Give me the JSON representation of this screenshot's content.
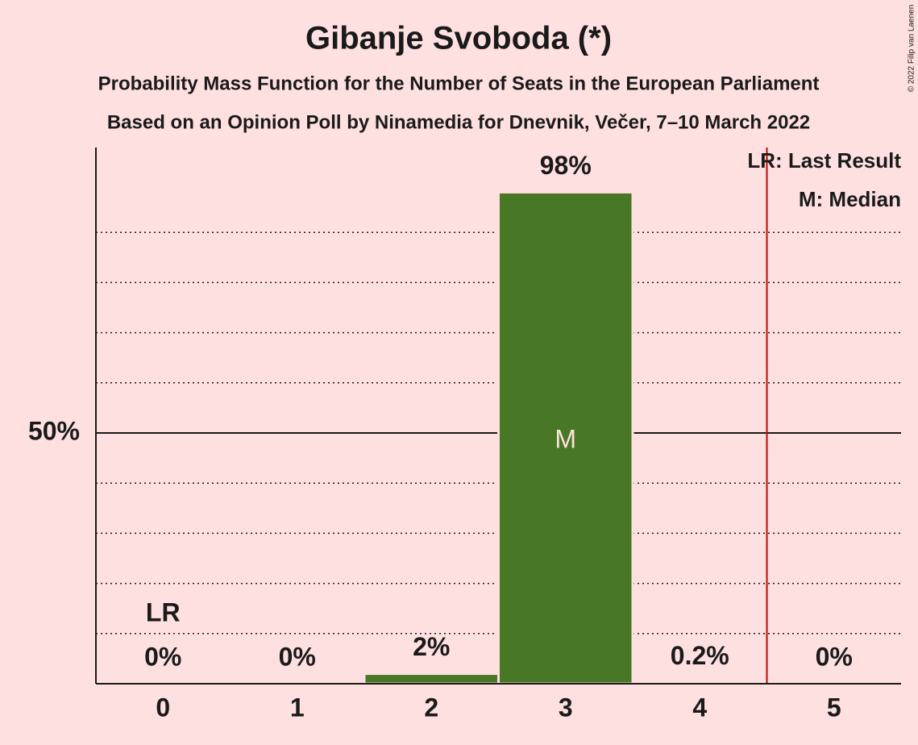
{
  "chart_data": {
    "type": "bar",
    "title": "Gibanje Svoboda (*)",
    "subtitle": "Probability Mass Function for the Number of Seats in the European Parliament",
    "subtitle2": "Based on an Opinion Poll by Ninamedia for Dnevnik, Večer, 7–10 March 2022",
    "copyright": "© 2022 Filip van Laenen",
    "x": [
      0,
      1,
      2,
      3,
      4,
      5
    ],
    "xlim": [
      -0.5,
      5.5
    ],
    "values": [
      0,
      0,
      2,
      98,
      0.2,
      0
    ],
    "value_labels": [
      "0%",
      "0%",
      "2%",
      "98%",
      "0.2%",
      "0%"
    ],
    "color": "#487726",
    "ylim": [
      0,
      100
    ],
    "yticks": [
      {
        "value": 50,
        "label": "50%"
      }
    ],
    "minor_yticks": [
      10,
      20,
      30,
      40,
      60,
      70,
      80,
      90
    ],
    "grid": true,
    "last_result": 0,
    "last_result_label": "LR",
    "median": 3,
    "median_label": "M",
    "threshold_x": 4.5,
    "threshold_color": "#cc0000",
    "legend": [
      "LR: Last Result",
      "M: Median"
    ]
  }
}
